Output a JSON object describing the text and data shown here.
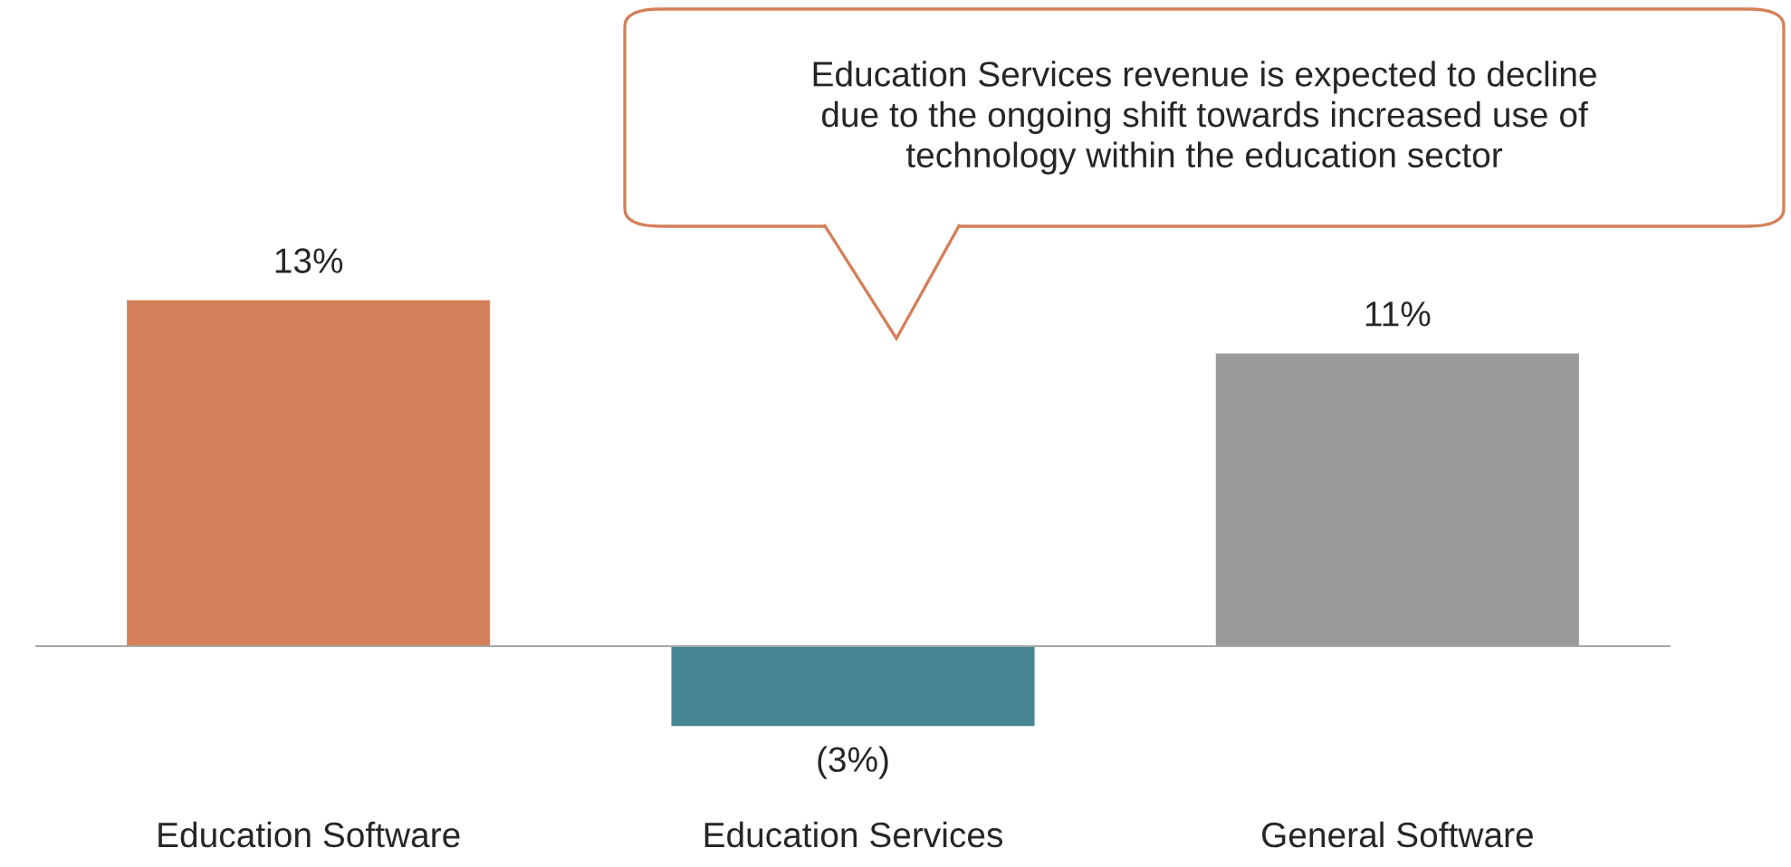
{
  "chart_data": {
    "type": "bar",
    "categories": [
      "Education Software",
      "Education Services",
      "General Software"
    ],
    "values": [
      13,
      -3,
      11
    ],
    "colors": [
      "#d4805a",
      "#458692",
      "#9b9b9b"
    ],
    "value_labels": [
      "13%",
      "(3%)",
      "11%"
    ],
    "annotations": [
      "Education Services revenue is expected to decline\ndue to the ongoing shift towards increased use of\ntechnology within the education sector"
    ],
    "grid": false,
    "legend": false
  }
}
